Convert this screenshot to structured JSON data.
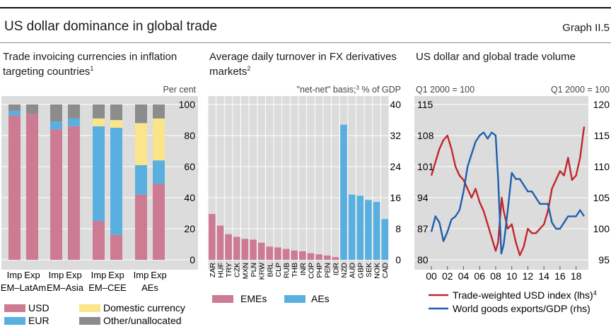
{
  "header": {
    "title": "US dollar dominance in global trade",
    "graph_id": "Graph II.5"
  },
  "chart_data": [
    {
      "type": "bar",
      "stacked": true,
      "title": "Trade invoicing currencies in inflation targeting countries",
      "title_note": "1",
      "unit_label": "Per cent",
      "ylim": [
        0,
        100
      ],
      "yticks": [
        "100",
        "80",
        "60",
        "40",
        "20",
        "0"
      ],
      "groups": [
        "EM–LatAm",
        "EM–Asia",
        "EM–CEE",
        "AEs"
      ],
      "bar_labels": [
        "Imp",
        "Exp"
      ],
      "series": [
        {
          "name": "USD",
          "color": "#cd7b92",
          "values": [
            93,
            94,
            84,
            86,
            25,
            16,
            42,
            49
          ]
        },
        {
          "name": "EUR",
          "color": "#59b0e0",
          "values": [
            3,
            0,
            5,
            5,
            61,
            69,
            19,
            15
          ]
        },
        {
          "name": "Domestic currency",
          "color": "#fbe58a",
          "values": [
            0,
            0,
            0,
            0,
            5,
            5,
            27,
            27
          ]
        },
        {
          "name": "Other/unallocated",
          "color": "#8c8c8c",
          "values": [
            4,
            6,
            11,
            9,
            9,
            10,
            12,
            9
          ]
        }
      ]
    },
    {
      "type": "bar",
      "title": "Average daily turnover in FX derivatives markets",
      "title_note": "2",
      "unit_label_pre": "\"net-net\" basis;",
      "unit_label_note": "3",
      "unit_label_post": " % of GDP",
      "ylim": [
        0,
        40
      ],
      "yticks": [
        "40",
        "32",
        "24",
        "16",
        "8",
        "0"
      ],
      "categories": [
        "ZAR",
        "HUF",
        "TRY",
        "CZK",
        "MXN",
        "PLN",
        "KRW",
        "BRL",
        "CLP",
        "RUB",
        "THB",
        "INR",
        "COP",
        "PHP",
        "PEN",
        "IDR",
        "NZD",
        "AUD",
        "GBP",
        "SEK",
        "NOK",
        "CAD"
      ],
      "values": [
        11.8,
        8.8,
        6.6,
        5.9,
        5.4,
        5.2,
        4.4,
        3.4,
        3.2,
        2.8,
        2.4,
        2.2,
        1.7,
        1.4,
        1.1,
        0.7,
        34.8,
        16.8,
        16.5,
        15.4,
        14.9,
        10.5
      ],
      "group_split_index": 16,
      "series": [
        {
          "name": "EMEs",
          "color": "#cd7b92"
        },
        {
          "name": "AEs",
          "color": "#59b0e0"
        }
      ]
    },
    {
      "type": "line",
      "title": "US dollar and global trade volume",
      "left_axis_label": "Q1 2000 = 100",
      "right_axis_label": "Q1 2000 = 100",
      "xlim": [
        2000,
        2019
      ],
      "xticks": [
        "00",
        "02",
        "04",
        "06",
        "08",
        "10",
        "12",
        "14",
        "16",
        "18"
      ],
      "y_left": {
        "lim": [
          80,
          115
        ],
        "ticks": [
          "115",
          "108",
          "101",
          "94",
          "87",
          "80"
        ]
      },
      "y_right": {
        "lim": [
          95,
          120
        ],
        "ticks": [
          "120",
          "115",
          "110",
          "105",
          "100",
          "95"
        ]
      },
      "series": [
        {
          "name": "Trade-weighted USD index (lhs)",
          "note": "4",
          "color": "#c1272d",
          "axis": "left",
          "x": [
            2000,
            2000.5,
            2001,
            2001.5,
            2002,
            2002.5,
            2003,
            2003.5,
            2004,
            2004.5,
            2005,
            2005.5,
            2006,
            2006.5,
            2007,
            2007.5,
            2008,
            2008.3,
            2008.75,
            2009,
            2009.5,
            2010,
            2010.5,
            2011,
            2011.5,
            2012,
            2012.5,
            2013,
            2013.5,
            2014,
            2014.5,
            2015,
            2015.5,
            2016,
            2016.5,
            2017,
            2017.5,
            2018,
            2018.5,
            2019
          ],
          "y": [
            99,
            102,
            105,
            107,
            108,
            105,
            101,
            99,
            98,
            96,
            94,
            96,
            93,
            91,
            88,
            85,
            82,
            84,
            94,
            91,
            87,
            88,
            84,
            81,
            83,
            87,
            86,
            86,
            87,
            88,
            91,
            96,
            98,
            100,
            99,
            103,
            98,
            99,
            103,
            110
          ]
        },
        {
          "name": "World goods exports/GDP (rhs)",
          "color": "#1f5fad",
          "axis": "right",
          "x": [
            2000,
            2000.5,
            2001,
            2001.5,
            2002,
            2002.5,
            2003,
            2003.5,
            2004,
            2004.5,
            2005,
            2005.5,
            2006,
            2006.5,
            2007,
            2007.5,
            2008,
            2008.3,
            2008.7,
            2009,
            2009.5,
            2010,
            2010.5,
            2011,
            2011.5,
            2012,
            2012.5,
            2013,
            2013.5,
            2014,
            2014.5,
            2015,
            2015.5,
            2016,
            2016.5,
            2017,
            2017.5,
            2018,
            2018.5,
            2019
          ],
          "y": [
            99.5,
            102,
            101,
            98,
            99.5,
            101.5,
            102,
            103,
            106,
            110,
            112,
            114,
            115,
            115.5,
            114.5,
            115.5,
            115,
            108,
            96,
            97.5,
            103,
            109,
            108,
            108,
            107,
            106,
            106,
            105,
            104,
            104,
            104,
            101,
            100,
            100,
            101,
            102,
            102,
            102,
            103,
            102
          ]
        }
      ]
    }
  ]
}
